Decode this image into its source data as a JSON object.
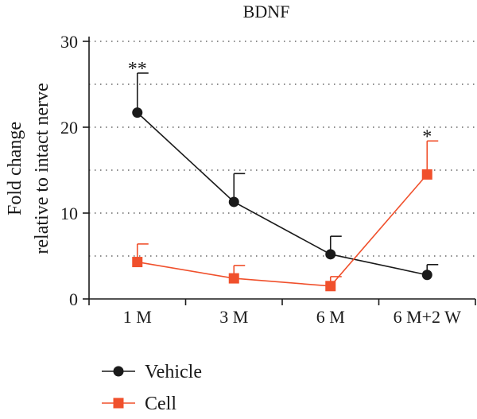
{
  "chart_data": {
    "type": "line",
    "title": "BDNF",
    "xlabel": "",
    "ylabel_line1": "Fold change",
    "ylabel_line2": "relative to intact nerve",
    "categories": [
      "1 M",
      "3 M",
      "6 M",
      "6 M+2 W"
    ],
    "ylim": [
      0,
      30
    ],
    "yticks": [
      0,
      10,
      20,
      30
    ],
    "grid": true,
    "legend_position": "bottom-left",
    "series": [
      {
        "name": "Vehicle",
        "color": "#1a1a1a",
        "marker": "circle",
        "values": [
          21.7,
          11.3,
          5.2,
          2.8
        ],
        "error": [
          4.6,
          3.3,
          2.1,
          1.2
        ],
        "annotations": [
          "**",
          "",
          "",
          ""
        ]
      },
      {
        "name": "Cell",
        "color": "#f0502c",
        "marker": "square",
        "values": [
          4.3,
          2.4,
          1.5,
          14.5
        ],
        "error": [
          2.1,
          1.5,
          1.1,
          3.9
        ],
        "annotations": [
          "",
          "",
          "",
          "*"
        ]
      }
    ]
  }
}
